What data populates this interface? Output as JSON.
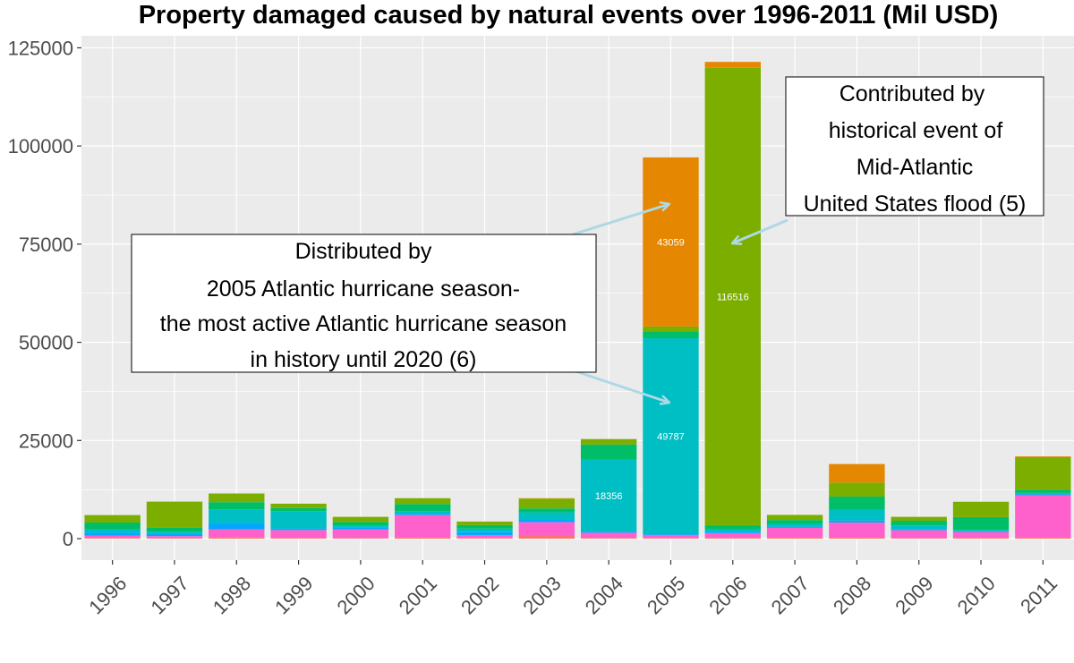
{
  "chart_data": {
    "type": "bar",
    "stacked": true,
    "title": "Property damaged caused by natural events over 1996-2011 (Mil USD)",
    "xlabel": "",
    "ylabel": "",
    "ylim": [
      -6000,
      128000
    ],
    "y_ticks": [
      0,
      25000,
      50000,
      75000,
      100000,
      125000
    ],
    "y_tick_labels": [
      "0",
      "25000",
      "50000",
      "75000",
      "100000",
      "125000"
    ],
    "grid": true,
    "legend": "none",
    "categories": [
      "1996",
      "1997",
      "1998",
      "1999",
      "2000",
      "2001",
      "2002",
      "2003",
      "2004",
      "2005",
      "2006",
      "2007",
      "2008",
      "2009",
      "2010",
      "2011"
    ],
    "colors": [
      "#f8766d",
      "#ff61cc",
      "#00a9ff",
      "#00bfc4",
      "#00be67",
      "#7cae00",
      "#e58700"
    ],
    "series": [
      {
        "values": [
          200,
          150,
          400,
          200,
          150,
          300,
          150,
          800,
          200,
          150,
          200,
          250,
          300,
          150,
          200,
          250
        ]
      },
      {
        "values": [
          600,
          500,
          2000,
          2000,
          2200,
          5700,
          700,
          3400,
          1300,
          800,
          1200,
          2500,
          3800,
          2000,
          1500,
          10800
        ]
      },
      {
        "values": [
          700,
          500,
          1600,
          400,
          400,
          300,
          800,
          800,
          300,
          300,
          400,
          300,
          500,
          300,
          200,
          300
        ]
      },
      {
        "values": [
          900,
          600,
          3500,
          4400,
          500,
          700,
          900,
          1700,
          18356,
          49787,
          600,
          700,
          2800,
          900,
          300,
          300
        ]
      },
      {
        "values": [
          1700,
          1000,
          1800,
          800,
          1000,
          1800,
          900,
          1000,
          3800,
          1800,
          1000,
          1000,
          3300,
          1200,
          3300,
          800
        ]
      },
      {
        "values": [
          1900,
          6600,
          2200,
          1100,
          1300,
          1500,
          900,
          2500,
          1400,
          1200,
          116516,
          1300,
          3600,
          1000,
          3900,
          8300
        ]
      },
      {
        "values": [
          0,
          100,
          0,
          0,
          0,
          0,
          0,
          100,
          0,
          43059,
          1500,
          0,
          4700,
          0,
          0,
          200
        ]
      }
    ],
    "data_labels": [
      {
        "category": "2004",
        "series_index": 3,
        "text": "18356"
      },
      {
        "category": "2005",
        "series_index": 3,
        "text": "49787"
      },
      {
        "category": "2005",
        "series_index": 6,
        "text": "43059"
      },
      {
        "category": "2006",
        "series_index": 5,
        "text": "116516"
      }
    ],
    "annotations": [
      {
        "lines": [
          "Distributed by",
          "2005 Atlantic hurricane season-",
          "the most active Atlantic hurricane season",
          "in history until 2020 (6)"
        ]
      },
      {
        "lines": [
          "Contributed by",
          "historical event of",
          "Mid-Atlantic",
          "United States flood (5)"
        ]
      }
    ],
    "arrow_color": "#add8e6"
  }
}
